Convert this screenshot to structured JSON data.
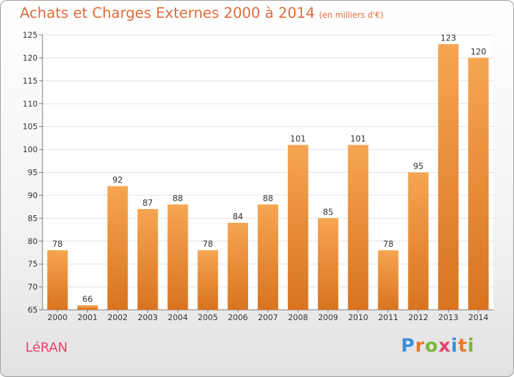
{
  "title": "Achats et Charges Externes 2000 à 2014",
  "unit": "(en milliers d'€)",
  "commune": "LéRAN",
  "logo": {
    "text": "Proxiti",
    "letters": [
      {
        "ch": "P",
        "color": "#3a8fd8"
      },
      {
        "ch": "r",
        "color": "#e8782a"
      },
      {
        "ch": "o",
        "color": "#7ab73a"
      },
      {
        "ch": "x",
        "color": "#e8426b"
      },
      {
        "ch": "i",
        "color": "#3a8fd8"
      },
      {
        "ch": "t",
        "color": "#e8782a"
      },
      {
        "ch": "i",
        "color": "#7ab73a"
      }
    ]
  },
  "colors": {
    "bar_top": "#f6a552",
    "bar_bottom": "#d9741f",
    "grid": "#e0e0e0",
    "title": "#e06c3a"
  },
  "chart_data": {
    "type": "bar",
    "categories": [
      "2000",
      "2001",
      "2002",
      "2003",
      "2004",
      "2005",
      "2006",
      "2007",
      "2008",
      "2009",
      "2010",
      "2011",
      "2012",
      "2013",
      "2014"
    ],
    "values": [
      78,
      66,
      92,
      87,
      88,
      78,
      84,
      88,
      101,
      85,
      101,
      78,
      95,
      123,
      120
    ],
    "ylim": [
      65,
      125
    ],
    "yticks": [
      65,
      70,
      75,
      80,
      85,
      90,
      95,
      100,
      105,
      110,
      115,
      120,
      125
    ],
    "grid": true
  }
}
